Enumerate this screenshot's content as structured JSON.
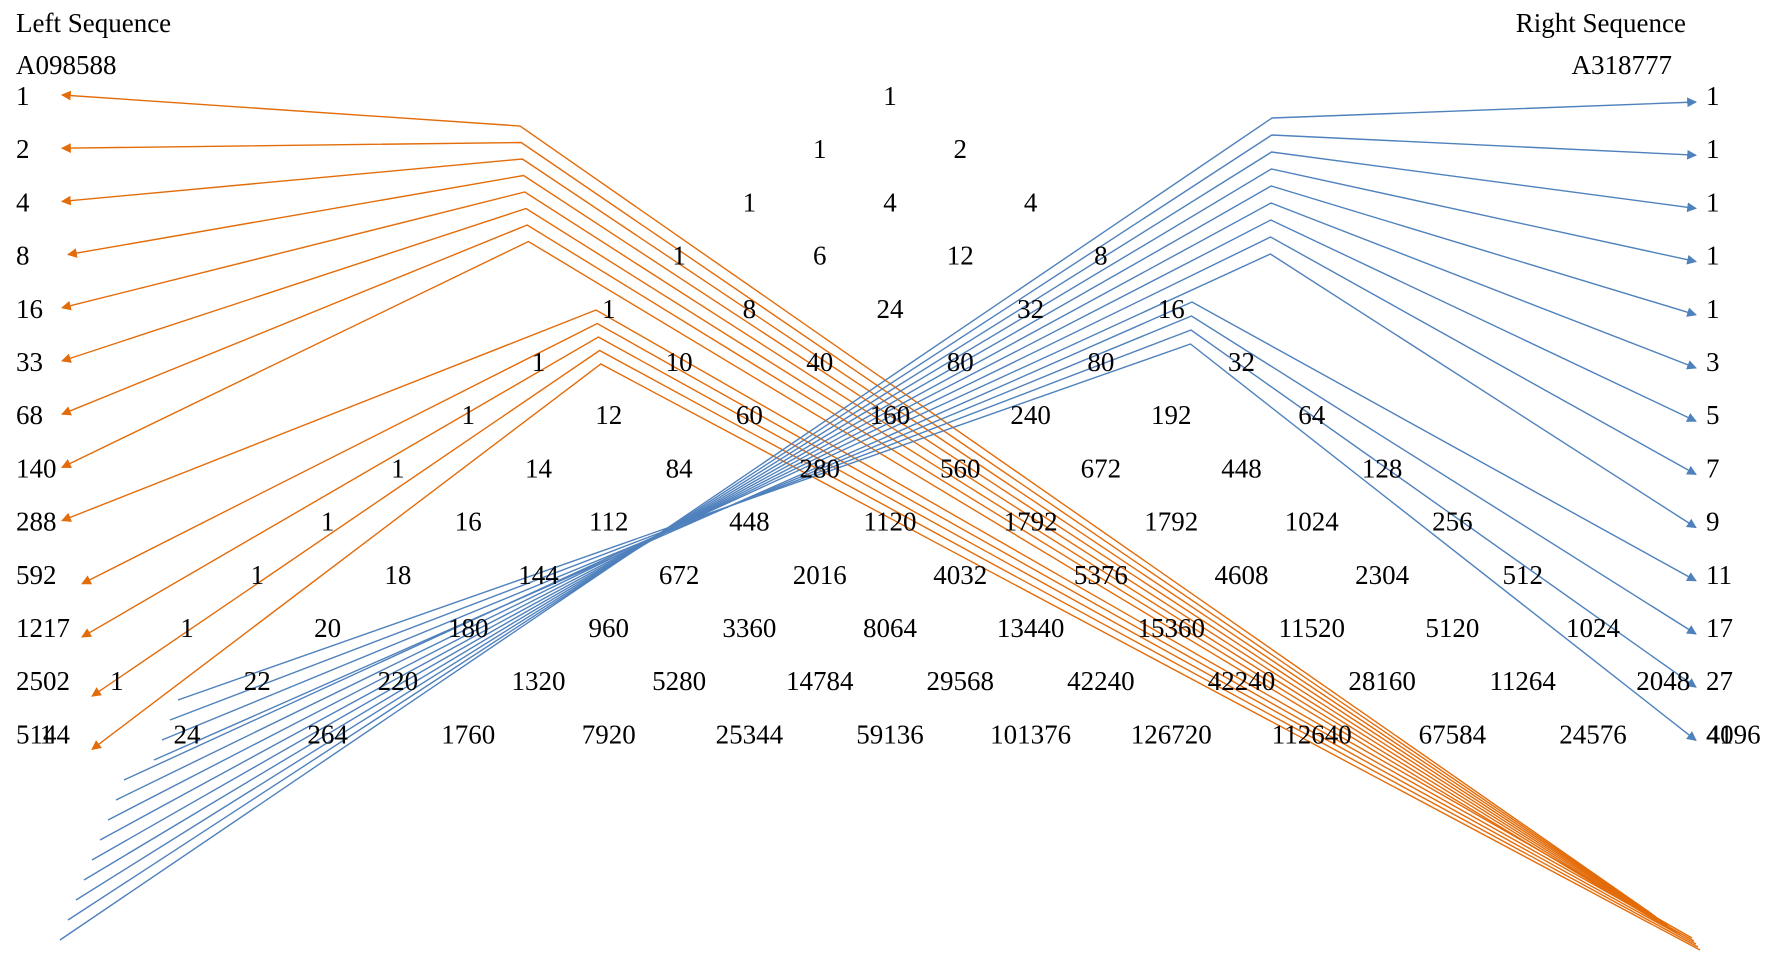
{
  "left": {
    "heading": "Left Sequence",
    "id": "A098588",
    "values": [
      "1",
      "2",
      "4",
      "8",
      "16",
      "33",
      "68",
      "140",
      "288",
      "592",
      "1217",
      "2502",
      "5144"
    ]
  },
  "right": {
    "heading": "Right Sequence",
    "id": "A318777",
    "values": [
      "1",
      "1",
      "1",
      "1",
      "1",
      "3",
      "5",
      "7",
      "9",
      "11",
      "17",
      "27",
      "41"
    ]
  },
  "triangle": [
    [
      "1"
    ],
    [
      "1",
      "2"
    ],
    [
      "1",
      "4",
      "4"
    ],
    [
      "1",
      "6",
      "12",
      "8"
    ],
    [
      "1",
      "8",
      "24",
      "32",
      "16"
    ],
    [
      "1",
      "10",
      "40",
      "80",
      "80",
      "32"
    ],
    [
      "1",
      "12",
      "60",
      "160",
      "240",
      "192",
      "64"
    ],
    [
      "1",
      "14",
      "84",
      "280",
      "560",
      "672",
      "448",
      "128"
    ],
    [
      "1",
      "16",
      "112",
      "448",
      "1120",
      "1792",
      "1792",
      "1024",
      "256"
    ],
    [
      "1",
      "18",
      "144",
      "672",
      "2016",
      "4032",
      "5376",
      "4608",
      "2304",
      "512"
    ],
    [
      "1",
      "20",
      "180",
      "960",
      "3360",
      "8064",
      "13440",
      "15360",
      "11520",
      "5120",
      "1024"
    ],
    [
      "1",
      "22",
      "220",
      "1320",
      "5280",
      "14784",
      "29568",
      "42240",
      "42240",
      "28160",
      "11264",
      "2048"
    ],
    [
      "1",
      "24",
      "264",
      "1760",
      "7920",
      "25344",
      "59136",
      "101376",
      "126720",
      "112640",
      "67584",
      "24576",
      "4096"
    ]
  ],
  "colors": {
    "left_arrows": "#E36C0A",
    "right_arrows": "#4F81BD",
    "text": "#000000"
  }
}
